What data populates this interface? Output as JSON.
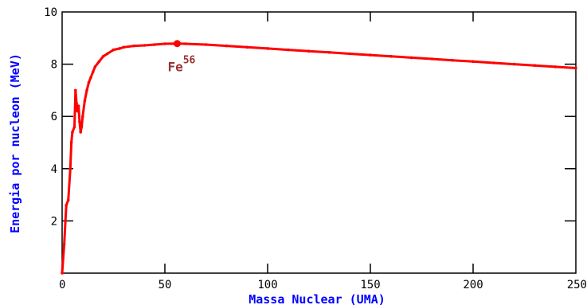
{
  "chart_data": {
    "type": "line",
    "title": "",
    "xlabel": "Massa Nuclear (UMA)",
    "ylabel": "Energia por nucleon (MeV)",
    "xlim": [
      0,
      250
    ],
    "ylim": [
      0,
      10
    ],
    "x_ticks": [
      "0",
      "50",
      "100",
      "150",
      "200",
      "250"
    ],
    "y_ticks": [
      "2",
      "4",
      "6",
      "8",
      "10"
    ],
    "grid": false,
    "legend": "none",
    "colors": {
      "line": "#ff0000",
      "axis_title": "#0000ff",
      "annotation": "#993333",
      "frame": "#000000"
    },
    "annotation": {
      "element": "Fe",
      "mass_number": "56",
      "x": 56,
      "y": 8.79
    },
    "series": [
      {
        "x": [
          0,
          1,
          2,
          3,
          4,
          4.5,
          5,
          6,
          6.5,
          7,
          7.5,
          8,
          8.5,
          9,
          9.5,
          10,
          11,
          12,
          13,
          14,
          15,
          16,
          18,
          20,
          22,
          25,
          28,
          30,
          35,
          40,
          45,
          50,
          56,
          60,
          70,
          80,
          90,
          100,
          110,
          120,
          130,
          140,
          150,
          160,
          170,
          180,
          190,
          200,
          210,
          220,
          230,
          240,
          250
        ],
        "y": [
          0,
          1.1,
          2.6,
          2.8,
          4.0,
          5.0,
          5.4,
          5.6,
          7.0,
          6.5,
          6.2,
          6.4,
          5.8,
          5.4,
          5.6,
          6.0,
          6.6,
          7.0,
          7.3,
          7.5,
          7.7,
          7.9,
          8.1,
          8.3,
          8.4,
          8.55,
          8.6,
          8.65,
          8.7,
          8.72,
          8.75,
          8.78,
          8.79,
          8.78,
          8.75,
          8.7,
          8.65,
          8.6,
          8.55,
          8.5,
          8.45,
          8.4,
          8.35,
          8.3,
          8.25,
          8.2,
          8.15,
          8.1,
          8.05,
          8.0,
          7.95,
          7.9,
          7.85
        ]
      }
    ]
  }
}
